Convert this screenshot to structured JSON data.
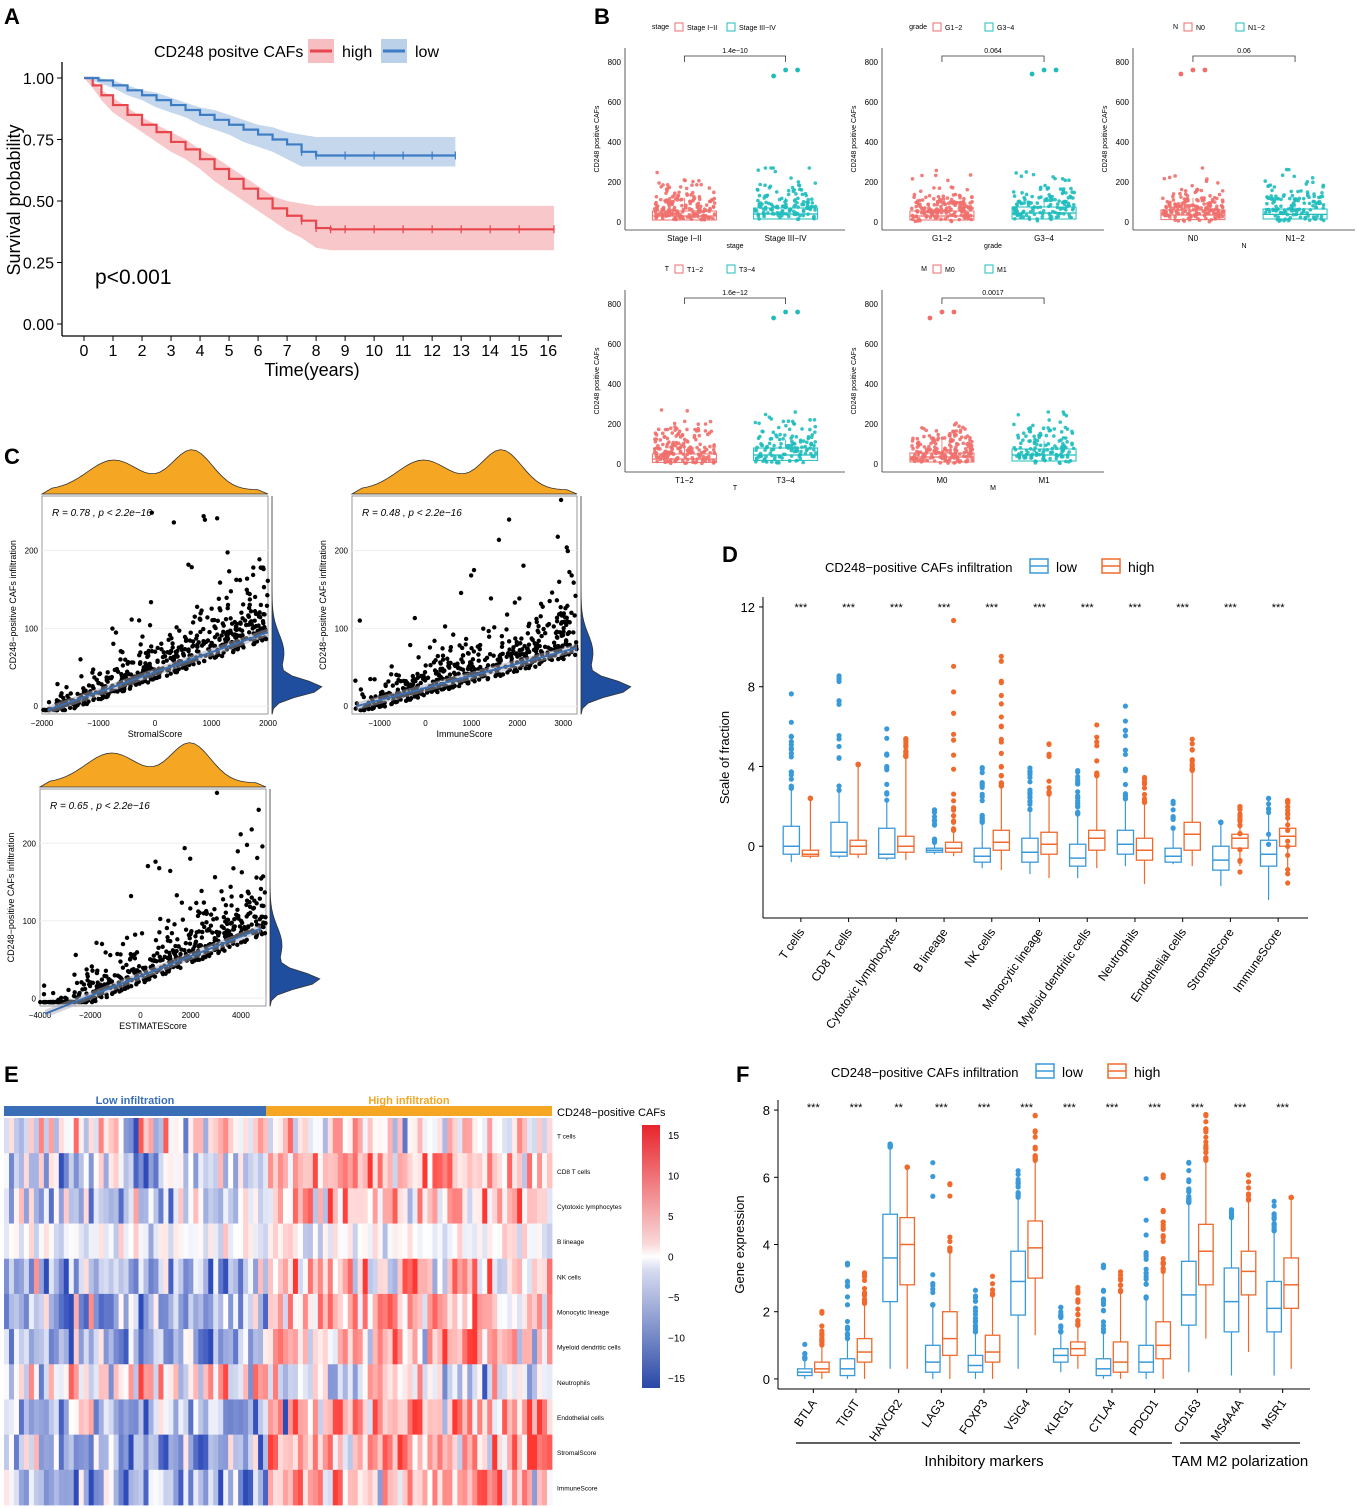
{
  "panel_labels": {
    "A": "A",
    "B": "B",
    "C": "C",
    "D": "D",
    "E": "E",
    "F": "F"
  },
  "colors": {
    "high": "#e8464d",
    "low": "#3b7cc4",
    "teal": "#1fbcbc",
    "salmon": "#ef6f6c",
    "orange": "#f5a623",
    "darkblue": "#1f4e9e",
    "boxBlue": "#3a9ad9",
    "boxOrange": "#ef6a2c",
    "regline": "#3b6fb0"
  },
  "chart_data": [
    {
      "id": "A",
      "type": "line",
      "title": "CD248 positve CAFs",
      "legend": [
        "high",
        "low"
      ],
      "xlabel": "Time(years)",
      "ylabel": "Survival probability",
      "xticks": [
        "0",
        "1",
        "2",
        "3",
        "4",
        "5",
        "6",
        "7",
        "8",
        "9",
        "10",
        "11",
        "12",
        "13",
        "14",
        "15",
        "16"
      ],
      "yticks": [
        "0.00",
        "0.25",
        "0.50",
        "0.75",
        "1.00"
      ],
      "xlim": [
        0,
        16.2
      ],
      "ylim": [
        0,
        1
      ],
      "annotation": "p<0.001",
      "series": [
        {
          "name": "high",
          "x": [
            0,
            0.3,
            0.6,
            1,
            1.5,
            2,
            2.5,
            3,
            3.5,
            4,
            4.5,
            5,
            5.5,
            6,
            6.5,
            7,
            7.5,
            8,
            8.5,
            9,
            10,
            11,
            12,
            13,
            14,
            15,
            16.2
          ],
          "y": [
            1,
            0.97,
            0.93,
            0.89,
            0.85,
            0.81,
            0.78,
            0.74,
            0.71,
            0.67,
            0.63,
            0.59,
            0.55,
            0.51,
            0.47,
            0.44,
            0.42,
            0.39,
            0.385,
            0.385,
            0.385,
            0.385,
            0.385,
            0.385,
            0.385,
            0.385,
            0.385
          ],
          "lower": [
            1,
            0.96,
            0.91,
            0.86,
            0.82,
            0.78,
            0.74,
            0.7,
            0.67,
            0.63,
            0.58,
            0.54,
            0.5,
            0.46,
            0.42,
            0.38,
            0.35,
            0.31,
            0.3,
            0.3,
            0.3,
            0.3,
            0.3,
            0.3,
            0.3,
            0.3,
            0.3
          ],
          "upper": [
            1,
            0.99,
            0.95,
            0.92,
            0.88,
            0.84,
            0.81,
            0.78,
            0.75,
            0.71,
            0.68,
            0.64,
            0.6,
            0.56,
            0.52,
            0.5,
            0.49,
            0.48,
            0.48,
            0.48,
            0.48,
            0.48,
            0.48,
            0.48,
            0.48,
            0.48,
            0.48
          ]
        },
        {
          "name": "low",
          "x": [
            0,
            0.5,
            1,
            1.5,
            2,
            2.5,
            3,
            3.5,
            4,
            4.5,
            5,
            5.5,
            6,
            6.5,
            7,
            7.5,
            8,
            9,
            10,
            11,
            12,
            12.8
          ],
          "y": [
            1,
            0.99,
            0.97,
            0.95,
            0.93,
            0.91,
            0.89,
            0.87,
            0.85,
            0.83,
            0.81,
            0.79,
            0.77,
            0.75,
            0.73,
            0.7,
            0.685,
            0.685,
            0.685,
            0.685,
            0.685,
            0.685
          ],
          "lower": [
            1,
            0.98,
            0.96,
            0.93,
            0.91,
            0.88,
            0.86,
            0.84,
            0.81,
            0.79,
            0.77,
            0.74,
            0.72,
            0.7,
            0.67,
            0.64,
            0.64,
            0.64,
            0.64,
            0.64,
            0.64,
            0.64
          ],
          "upper": [
            1,
            1,
            0.99,
            0.97,
            0.95,
            0.94,
            0.92,
            0.9,
            0.88,
            0.87,
            0.85,
            0.83,
            0.81,
            0.8,
            0.78,
            0.77,
            0.76,
            0.76,
            0.76,
            0.76,
            0.76,
            0.76
          ]
        }
      ]
    },
    {
      "id": "B",
      "type": "box",
      "ylabel": "CD248 positive CAFs",
      "yticks": [
        "0",
        "200",
        "400",
        "600",
        "800"
      ],
      "ylim": [
        0,
        850
      ],
      "subplots": [
        {
          "legend_title": "stage",
          "groups": [
            "Stage I−II",
            "Stage III−IV"
          ],
          "xlabel": "stage",
          "pvalue": "1.4e−10",
          "medians": [
            30,
            40
          ],
          "q1": [
            10,
            15
          ],
          "q3": [
            55,
            70
          ],
          "max": [
            270,
            270
          ],
          "outliers": [
            [],
            [
              730,
              760,
              760
            ]
          ]
        },
        {
          "legend_title": "grade",
          "groups": [
            "G1−2",
            "G3−4"
          ],
          "xlabel": "grade",
          "pvalue": "0.064",
          "medians": [
            30,
            45
          ],
          "q1": [
            10,
            15
          ],
          "q3": [
            55,
            75
          ],
          "max": [
            270,
            270
          ],
          "outliers": [
            [],
            [
              740,
              760,
              760
            ]
          ]
        },
        {
          "legend_title": "N",
          "groups": [
            "N0",
            "N1−2"
          ],
          "xlabel": "N",
          "pvalue": "0.06",
          "medians": [
            35,
            38
          ],
          "q1": [
            12,
            15
          ],
          "q3": [
            60,
            65
          ],
          "max": [
            270,
            270
          ],
          "outliers": [
            [
              740,
              760,
              760
            ],
            []
          ]
        },
        {
          "legend_title": "T",
          "groups": [
            "T1−2",
            "T3−4"
          ],
          "xlabel": "T",
          "pvalue": "1.6e−12",
          "medians": [
            25,
            45
          ],
          "q1": [
            8,
            18
          ],
          "q3": [
            50,
            80
          ],
          "max": [
            270,
            270
          ],
          "outliers": [
            [],
            [
              730,
              760,
              760
            ]
          ]
        },
        {
          "legend_title": "M",
          "groups": [
            "M0",
            "M1"
          ],
          "xlabel": "M",
          "pvalue": "0.0017",
          "medians": [
            35,
            45
          ],
          "q1": [
            10,
            15
          ],
          "q3": [
            55,
            75
          ],
          "max": [
            270,
            260
          ],
          "outliers": [
            [
              730,
              760,
              760
            ],
            []
          ]
        }
      ]
    },
    {
      "id": "C",
      "type": "scatter",
      "ylabel": "CD248−positive CAFs infiltration",
      "yticks": [
        "0",
        "100",
        "200"
      ],
      "subplots": [
        {
          "xlabel": "StromalScore",
          "annotation": "R = 0.78 , p < 2.2e−16",
          "xticks": [
            "−2000",
            "−1000",
            "0",
            "1000",
            "2000"
          ],
          "xlim": [
            -2000,
            2000
          ],
          "ylim": [
            -10,
            270
          ],
          "fit": [
            [
              -1900,
              -5
            ],
            [
              2000,
              95
            ]
          ]
        },
        {
          "xlabel": "ImmuneScore",
          "annotation": "R = 0.48 , p < 2.2e−16",
          "xticks": [
            "−1000",
            "0",
            "1000",
            "2000",
            "3000"
          ],
          "xlim": [
            -1600,
            3300
          ],
          "ylim": [
            -10,
            270
          ],
          "fit": [
            [
              -1500,
              0
            ],
            [
              3300,
              75
            ]
          ]
        },
        {
          "xlabel": "ESTIMATEScore",
          "annotation": "R = 0.65 , p < 2.2e−16",
          "xticks": [
            "−4000",
            "−2000",
            "0",
            "2000",
            "4000"
          ],
          "xlim": [
            -4000,
            5000
          ],
          "ylim": [
            -10,
            270
          ],
          "fit": [
            [
              -3800,
              -20
            ],
            [
              4800,
              90
            ]
          ]
        }
      ]
    },
    {
      "id": "D",
      "type": "box",
      "legend_title": "CD248−positive CAFs infiltration",
      "legend": [
        "low",
        "high"
      ],
      "ylabel": "Scale of fraction",
      "yticks": [
        "0",
        "4",
        "8",
        "12"
      ],
      "ylim": [
        -3.6,
        12.5
      ],
      "categories": [
        "T cells",
        "CD8 T cells",
        "Cytotoxic lymphocytes",
        "B lineage",
        "NK cells",
        "Monocytic lineage",
        "Myeloid dendritic cells",
        "Neutrophils",
        "Endothelial cells",
        "StromalScore",
        "ImmuneScore"
      ],
      "significance": [
        "***",
        "***",
        "***",
        "***",
        "***",
        "***",
        "***",
        "***",
        "***",
        "***",
        "***"
      ],
      "low": {
        "median": [
          0,
          -0.3,
          -0.4,
          -0.2,
          -0.5,
          -0.3,
          -0.6,
          0.1,
          -0.5,
          -0.7,
          -0.4
        ],
        "q1": [
          -0.4,
          -0.5,
          -0.6,
          -0.3,
          -0.8,
          -0.8,
          -1,
          -0.4,
          -0.8,
          -1.2,
          -1
        ],
        "q3": [
          1,
          1.2,
          0.9,
          -0.1,
          -0.1,
          0.4,
          0.1,
          0.8,
          -0.1,
          0,
          0.3
        ],
        "lo": [
          -0.8,
          -0.6,
          -0.7,
          -0.4,
          -1.1,
          -1.4,
          -1.6,
          -1,
          -0.9,
          -2,
          -2.7
        ],
        "hi": [
          2.9,
          2.8,
          2.3,
          0.2,
          1.2,
          1.8,
          1.6,
          2.3,
          0.9,
          1.2,
          2.4
        ]
      },
      "high": {
        "median": [
          -0.4,
          0,
          0,
          -0.1,
          0.2,
          0.1,
          0.4,
          -0.2,
          0.6,
          0.4,
          0.5
        ],
        "q1": [
          -0.5,
          -0.4,
          -0.3,
          -0.3,
          -0.2,
          -0.4,
          -0.2,
          -0.7,
          -0.2,
          -0.1,
          0
        ],
        "q3": [
          -0.2,
          0.3,
          0.5,
          0.2,
          0.8,
          0.7,
          0.8,
          0.4,
          1.2,
          0.6,
          0.9
        ],
        "lo": [
          -0.6,
          -0.6,
          -0.7,
          -0.5,
          -1.2,
          -1.6,
          -1.1,
          -1.9,
          -1,
          -1,
          -1.3
        ],
        "hi": [
          2.4,
          4.1,
          4.5,
          0.8,
          3,
          2.6,
          3.5,
          2.2,
          3.8,
          2,
          2.3
        ]
      }
    },
    {
      "id": "E",
      "type": "heatmap",
      "groups": [
        "Low infiltration",
        "High infiltration"
      ],
      "annotation_label": "CD248−positive CAFs",
      "rows": [
        "T cells",
        "CD8 T cells",
        "Cytotoxic lymphocytes",
        "B lineage",
        "NK cells",
        "Monocytic lineage",
        "Myeloid dendritic cells",
        "Neutrophils",
        "Endothelial cells",
        "StromalScore",
        "ImmuneScore"
      ],
      "colorbar_ticks": [
        "15",
        "10",
        "5",
        "0",
        "−5",
        "−10",
        "−15"
      ],
      "row_bias_low": [
        0.1,
        -0.3,
        -0.3,
        0,
        -0.5,
        -0.5,
        -0.5,
        0.1,
        -0.4,
        -0.6,
        -0.6
      ],
      "row_bias_high": [
        0.1,
        0.3,
        0.3,
        0,
        0.4,
        0.3,
        0.4,
        -0.1,
        0.5,
        0.6,
        0.5
      ]
    },
    {
      "id": "F",
      "type": "box",
      "legend_title": "CD248−positive CAFs infiltration",
      "legend": [
        "low",
        "high"
      ],
      "ylabel": "Gene expression",
      "yticks": [
        "0",
        "2",
        "4",
        "6",
        "8"
      ],
      "ylim": [
        -0.3,
        8.3
      ],
      "categories": [
        "BTLA",
        "TIGIT",
        "HAVCR2",
        "LAG3",
        "FOXP3",
        "VSIG4",
        "KLRG1",
        "CTLA4",
        "PDCD1",
        "CD163",
        "MS4A4A",
        "MSR1"
      ],
      "significance": [
        "***",
        "***",
        "**",
        "***",
        "***",
        "***",
        "***",
        "***",
        "***",
        "***",
        "***",
        "***"
      ],
      "groups": [
        {
          "label": "Inhibitory markers",
          "from": 0,
          "to": 8
        },
        {
          "label": "TAM M2 polarization",
          "from": 9,
          "to": 11
        }
      ],
      "low": {
        "median": [
          0.2,
          0.3,
          3.6,
          0.5,
          0.4,
          2.9,
          0.7,
          0.3,
          0.5,
          2.5,
          2.3,
          2.1
        ],
        "q1": [
          0.1,
          0.1,
          2.3,
          0.2,
          0.2,
          1.9,
          0.5,
          0.1,
          0.2,
          1.6,
          1.4,
          1.4
        ],
        "q3": [
          0.3,
          0.6,
          4.9,
          1,
          0.7,
          3.8,
          0.9,
          0.6,
          1,
          3.5,
          3.3,
          2.9
        ],
        "lo": [
          0,
          0,
          0.3,
          0,
          0,
          0.3,
          0.2,
          0,
          0,
          0.2,
          0.1,
          0.1
        ],
        "hi": [
          0.6,
          1.2,
          6.9,
          2.2,
          1.4,
          5.4,
          1.4,
          1.4,
          2.4,
          5.2,
          4.8,
          4.4
        ]
      },
      "high": {
        "median": [
          0.3,
          0.8,
          4,
          1.2,
          0.8,
          3.9,
          0.9,
          0.5,
          1,
          3.8,
          3.2,
          2.8
        ],
        "q1": [
          0.2,
          0.5,
          2.8,
          0.7,
          0.5,
          3,
          0.7,
          0.2,
          0.6,
          2.8,
          2.5,
          2.1
        ],
        "q3": [
          0.5,
          1.2,
          4.8,
          2,
          1.3,
          4.7,
          1.1,
          1.1,
          1.7,
          4.6,
          3.8,
          3.6
        ],
        "lo": [
          0,
          0,
          0.3,
          0,
          0,
          1.3,
          0.3,
          0,
          0,
          1.2,
          0.8,
          0.3
        ],
        "hi": [
          1,
          2.2,
          6.3,
          3.8,
          2.5,
          6.5,
          1.6,
          2.6,
          3.2,
          6.5,
          5.3,
          5.4
        ]
      }
    }
  ]
}
